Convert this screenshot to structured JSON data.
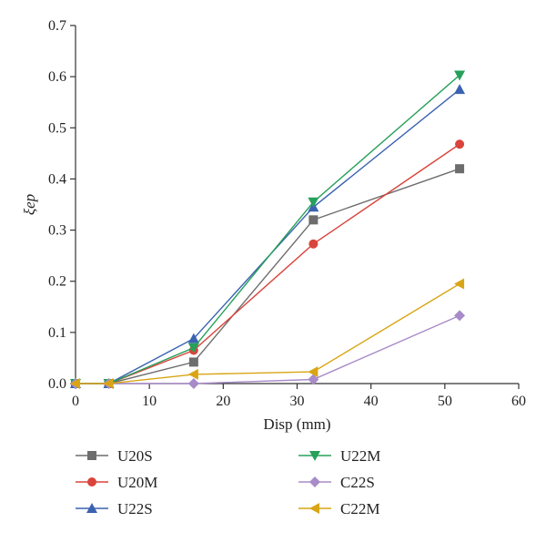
{
  "chart_data": {
    "type": "line",
    "xlabel": "Disp (mm)",
    "ylabel": "ξep",
    "xlim": [
      0,
      60
    ],
    "ylim": [
      0,
      0.7
    ],
    "x_ticks": [
      0,
      10,
      20,
      30,
      40,
      50,
      60
    ],
    "y_ticks": [
      0.0,
      0.1,
      0.2,
      0.3,
      0.4,
      0.5,
      0.6,
      0.7
    ],
    "x_tick_labels": [
      "0",
      "10",
      "20",
      "30",
      "40",
      "50",
      "60"
    ],
    "y_tick_labels": [
      "0.0",
      "0.1",
      "0.2",
      "0.3",
      "0.4",
      "0.5",
      "0.6",
      "0.7"
    ],
    "grid": false,
    "legend_position": "bottom",
    "series": [
      {
        "name": "U20S",
        "color": "#6d6d6d",
        "marker": "square",
        "points": [
          [
            0,
            0
          ],
          [
            4.5,
            0
          ],
          [
            16,
            0.042
          ],
          [
            32.2,
            0.32
          ],
          [
            52,
            0.42
          ]
        ]
      },
      {
        "name": "U20M",
        "color": "#d9443c",
        "marker": "circle",
        "points": [
          [
            0,
            0
          ],
          [
            4.5,
            0
          ],
          [
            16,
            0.065
          ],
          [
            32.2,
            0.273
          ],
          [
            52,
            0.468
          ]
        ]
      },
      {
        "name": "U22S",
        "color": "#3a62b0",
        "marker": "triangle-up",
        "points": [
          [
            0,
            0
          ],
          [
            4.5,
            0
          ],
          [
            16,
            0.088
          ],
          [
            32.2,
            0.345
          ],
          [
            52,
            0.575
          ]
        ]
      },
      {
        "name": "U22M",
        "color": "#27a05a",
        "marker": "triangle-down",
        "points": [
          [
            0,
            0
          ],
          [
            4.5,
            0
          ],
          [
            16,
            0.07
          ],
          [
            32.2,
            0.355
          ],
          [
            52,
            0.603
          ]
        ]
      },
      {
        "name": "C22S",
        "color": "#a88bc9",
        "marker": "diamond",
        "points": [
          [
            0,
            0
          ],
          [
            4.5,
            0
          ],
          [
            16,
            0
          ],
          [
            32.2,
            0.008
          ],
          [
            52,
            0.133
          ]
        ]
      },
      {
        "name": "C22M",
        "color": "#d9a514",
        "marker": "triangle-left",
        "points": [
          [
            0,
            0
          ],
          [
            4.5,
            0
          ],
          [
            16,
            0.018
          ],
          [
            32.2,
            0.023
          ],
          [
            52,
            0.195
          ]
        ]
      }
    ]
  }
}
